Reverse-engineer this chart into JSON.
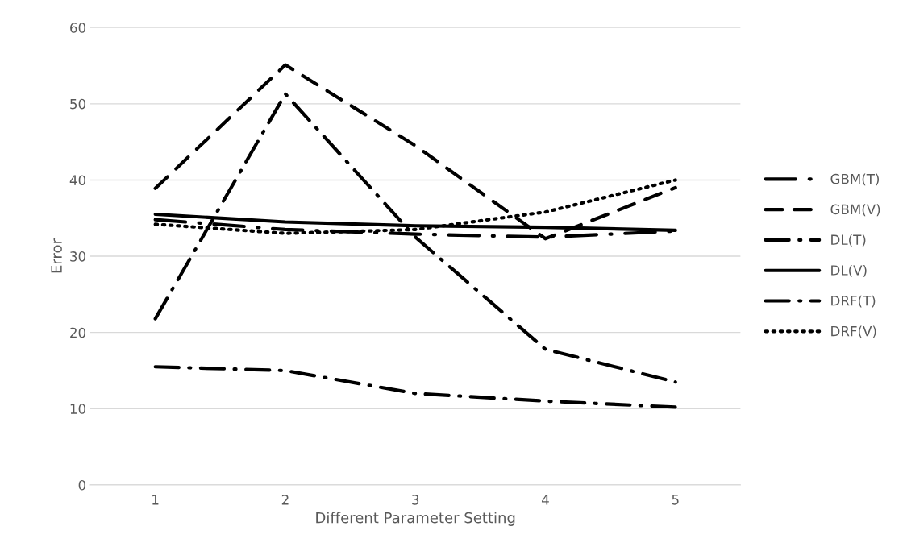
{
  "chart_data": {
    "type": "line",
    "xlabel": "Different Parameter Setting",
    "ylabel": "Error",
    "categories": [
      "1",
      "2",
      "3",
      "4",
      "5"
    ],
    "series": [
      {
        "name": "GBM(T)",
        "color": "#000000",
        "line_style": "longdashdot",
        "values": [
          34.8,
          33.5,
          32.9,
          32.5,
          33.3
        ]
      },
      {
        "name": "GBM(V)",
        "color": "#000000",
        "line_style": "dashed",
        "values": [
          38.9,
          55.1,
          44.5,
          32.3,
          39.0
        ]
      },
      {
        "name": "DL(T)",
        "color": "#000000",
        "line_style": "dashdot",
        "values": [
          21.8,
          51.3,
          32.5,
          17.8,
          13.5
        ]
      },
      {
        "name": "DL(V)",
        "color": "#000000",
        "line_style": "solid",
        "values": [
          35.5,
          34.5,
          34.0,
          33.8,
          33.4
        ]
      },
      {
        "name": "DRF(T)",
        "color": "#000000",
        "line_style": "dashdot",
        "values": [
          15.5,
          15.0,
          12.0,
          11.0,
          10.2
        ]
      },
      {
        "name": "DRF(V)",
        "color": "#000000",
        "line_style": "dotted",
        "values": [
          34.2,
          33.0,
          33.5,
          35.8,
          40.0
        ]
      }
    ],
    "ylim": [
      0,
      60
    ],
    "yticks": [
      0,
      10,
      20,
      30,
      40,
      50,
      60
    ],
    "grid": "y",
    "legend": "right",
    "marker": "none"
  }
}
